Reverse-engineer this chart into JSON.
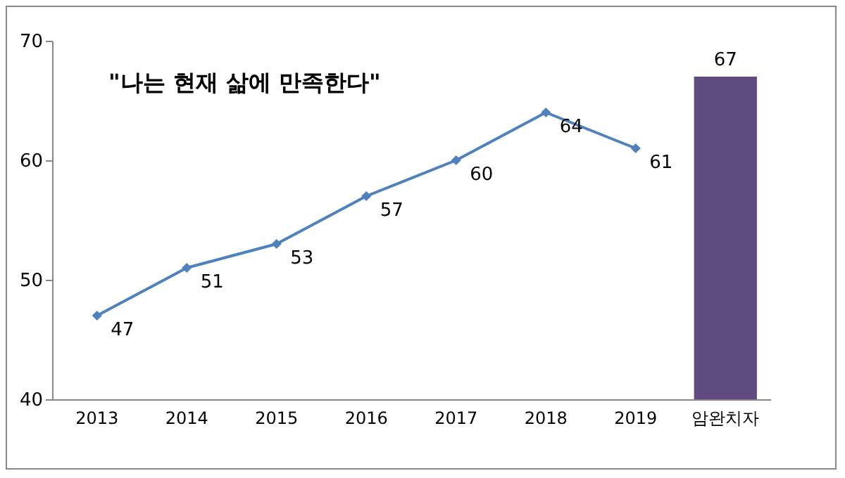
{
  "chart_data": {
    "type": "line",
    "categories": [
      "2013",
      "2014",
      "2015",
      "2016",
      "2017",
      "2018",
      "2019",
      "암완치자"
    ],
    "series": [
      {
        "color": "#4f81bd",
        "values": [
          47,
          51,
          53,
          57,
          60,
          64,
          61,
          null
        ]
      },
      {
        "type": "bar",
        "color": "#5f4b7f",
        "values": [
          null,
          null,
          null,
          null,
          null,
          null,
          null,
          67
        ]
      }
    ],
    "ylim": [
      40,
      70
    ],
    "yticks": [
      40,
      50,
      60,
      70
    ],
    "marker": "diamond",
    "data_labels": true,
    "annotations": [
      "\"나는 현재 삶에 만족한다\""
    ]
  }
}
